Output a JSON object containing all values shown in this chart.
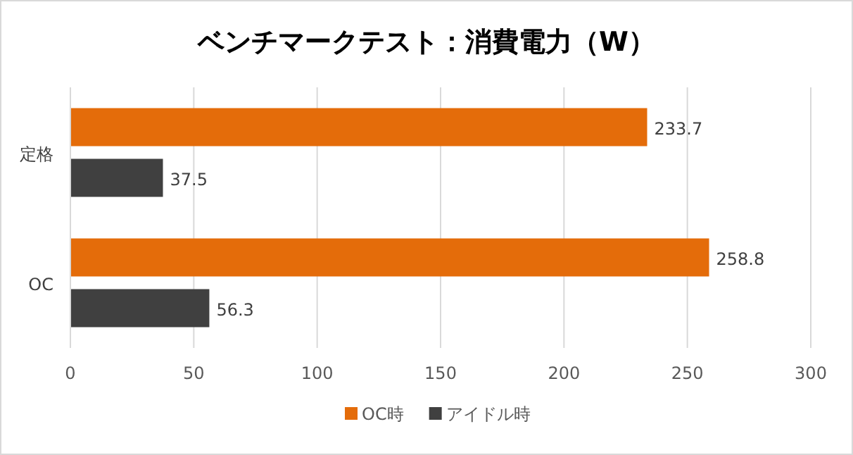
{
  "chart_data": {
    "type": "bar",
    "orientation": "horizontal",
    "title": "ベンチマークテスト：消費電力（W）",
    "categories": [
      "定格",
      "OC"
    ],
    "series": [
      {
        "name": "OC時",
        "color": "#e46c0a",
        "values": [
          233.7,
          258.8
        ]
      },
      {
        "name": "アイドル時",
        "color": "#404040",
        "values": [
          37.5,
          56.3
        ]
      }
    ],
    "xlim": [
      0,
      300
    ],
    "xticks": [
      0,
      50,
      100,
      150,
      200,
      250,
      300
    ],
    "grid": "x",
    "legend": "bottom",
    "data_labels": true
  }
}
